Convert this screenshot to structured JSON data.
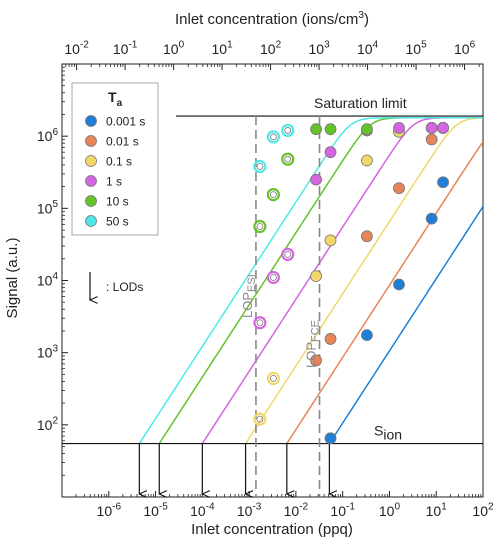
{
  "chart_data": {
    "type": "scatter",
    "title": "",
    "xlabel": "Inlet concentration (ppq)",
    "ylabel": "Signal (a.u.)",
    "top_axis_label": "Inlet concentration (ions/cm3)",
    "top_axis_label_main": "Inlet concentration (ions/cm",
    "top_axis_label_sup": "3",
    "top_axis_label_end": ")",
    "xscale": "log",
    "yscale": "log",
    "xlim": [
      1e-07,
      100
    ],
    "ylim": [
      10,
      10000000.0
    ],
    "top_xlim": [
      0.005,
      2400000
    ],
    "x_ticks": [
      {
        "value": 1e-06,
        "base": "10",
        "exp": "-6"
      },
      {
        "value": 1e-05,
        "base": "10",
        "exp": "-5"
      },
      {
        "value": 0.0001,
        "base": "10",
        "exp": "-4"
      },
      {
        "value": 0.001,
        "base": "10",
        "exp": "-3"
      },
      {
        "value": 0.01,
        "base": "10",
        "exp": "-2"
      },
      {
        "value": 0.1,
        "base": "10",
        "exp": "-1"
      },
      {
        "value": 1,
        "base": "10",
        "exp": "0"
      },
      {
        "value": 10,
        "base": "10",
        "exp": "1"
      },
      {
        "value": 100,
        "base": "10",
        "exp": "2"
      }
    ],
    "top_ticks": [
      {
        "value": 0.01,
        "base": "10",
        "exp": "-2"
      },
      {
        "value": 0.1,
        "base": "10",
        "exp": "-1"
      },
      {
        "value": 1,
        "base": "10",
        "exp": "0"
      },
      {
        "value": 10,
        "base": "10",
        "exp": "1"
      },
      {
        "value": 100,
        "base": "10",
        "exp": "2"
      },
      {
        "value": 1000,
        "base": "10",
        "exp": "3"
      },
      {
        "value": 10000,
        "base": "10",
        "exp": "4"
      },
      {
        "value": 100000,
        "base": "10",
        "exp": "5"
      },
      {
        "value": 1000000,
        "base": "10",
        "exp": "6"
      }
    ],
    "y_ticks": [
      {
        "value": 100,
        "base": "10",
        "exp": "2"
      },
      {
        "value": 1000,
        "base": "10",
        "exp": "3"
      },
      {
        "value": 10000,
        "base": "10",
        "exp": "4"
      },
      {
        "value": 100000,
        "base": "10",
        "exp": "5"
      },
      {
        "value": 1000000,
        "base": "10",
        "exp": "6"
      }
    ],
    "legend": {
      "title_main": "T",
      "title_sub": "a",
      "placement": "top-left"
    },
    "series": [
      {
        "name": "0.001 s",
        "color": "#1f7fd6",
        "curve": {
          "lod": 0.052,
          "s0": 55,
          "sat": 1800000.0
        },
        "points": [
          {
            "x": 0.055,
            "y": 65,
            "style": "filled"
          },
          {
            "x": 0.33,
            "y": 1750,
            "style": "filled"
          },
          {
            "x": 1.6,
            "y": 8800,
            "style": "filled"
          },
          {
            "x": 8.0,
            "y": 72000,
            "style": "filled"
          },
          {
            "x": 14,
            "y": 230000,
            "style": "filled"
          }
        ]
      },
      {
        "name": "0.01 s",
        "color": "#e8845a",
        "curve": {
          "lod": 0.0064,
          "s0": 55,
          "sat": 1800000.0
        },
        "points": [
          {
            "x": 0.027,
            "y": 780,
            "style": "filled"
          },
          {
            "x": 0.055,
            "y": 1550,
            "style": "filled"
          },
          {
            "x": 0.33,
            "y": 41000,
            "style": "filled"
          },
          {
            "x": 1.6,
            "y": 190000,
            "style": "filled"
          },
          {
            "x": 8.0,
            "y": 900000,
            "style": "filled"
          },
          {
            "x": 14,
            "y": 1300000,
            "style": "filled"
          }
        ]
      },
      {
        "name": "0.1 s",
        "color": "#f2d76a",
        "curve": {
          "lod": 0.00084,
          "s0": 55,
          "sat": 1800000.0
        },
        "points": [
          {
            "x": 0.0017,
            "y": 120,
            "style": "open"
          },
          {
            "x": 0.0033,
            "y": 440,
            "style": "open"
          },
          {
            "x": 0.027,
            "y": 11500,
            "style": "filled"
          },
          {
            "x": 0.055,
            "y": 36000,
            "style": "filled"
          },
          {
            "x": 0.33,
            "y": 460000,
            "style": "filled"
          },
          {
            "x": 1.6,
            "y": 1150000,
            "style": "filled"
          },
          {
            "x": 8.0,
            "y": 1300000,
            "style": "filled"
          },
          {
            "x": 14,
            "y": 1300000,
            "style": "filled"
          }
        ]
      },
      {
        "name": "1 s",
        "color": "#d465e0",
        "curve": {
          "lod": 0.0001,
          "s0": 55,
          "sat": 1800000.0
        },
        "points": [
          {
            "x": 0.0017,
            "y": 2600,
            "style": "open"
          },
          {
            "x": 0.0033,
            "y": 11000,
            "style": "open"
          },
          {
            "x": 0.0067,
            "y": 23000,
            "style": "open"
          },
          {
            "x": 0.027,
            "y": 250000,
            "style": "filled"
          },
          {
            "x": 0.055,
            "y": 600000,
            "style": "filled"
          },
          {
            "x": 0.33,
            "y": 1200000,
            "style": "filled"
          },
          {
            "x": 1.6,
            "y": 1300000,
            "style": "filled"
          },
          {
            "x": 8.0,
            "y": 1300000,
            "style": "filled"
          },
          {
            "x": 14,
            "y": 1300000,
            "style": "filled"
          }
        ]
      },
      {
        "name": "10 s",
        "color": "#66c22a",
        "curve": {
          "lod": 1.2e-05,
          "s0": 55,
          "sat": 1800000.0
        },
        "points": [
          {
            "x": 0.0017,
            "y": 56000,
            "style": "open"
          },
          {
            "x": 0.0033,
            "y": 155000,
            "style": "open"
          },
          {
            "x": 0.0067,
            "y": 480000,
            "style": "open"
          },
          {
            "x": 0.027,
            "y": 1250000,
            "style": "filled"
          },
          {
            "x": 0.055,
            "y": 1250000,
            "style": "filled"
          },
          {
            "x": 0.33,
            "y": 1250000,
            "style": "filled"
          }
        ]
      },
      {
        "name": "50 s",
        "color": "#4fe8e8",
        "curve": {
          "lod": 4.5e-06,
          "s0": 55,
          "sat": 1800000.0
        },
        "points": [
          {
            "x": 0.0017,
            "y": 380000,
            "style": "open"
          },
          {
            "x": 0.0033,
            "y": 980000,
            "style": "open"
          },
          {
            "x": 0.0067,
            "y": 1200000,
            "style": "open"
          }
        ]
      }
    ],
    "annotations": {
      "saturation": {
        "label": "Saturation limit",
        "y": 1900000.0
      },
      "sion": {
        "label_main": "S",
        "label_sub": "ion",
        "y": 55
      },
      "lods_label": ": LODs",
      "lod_arrows_x": [
        4.5e-06,
        1.2e-05,
        0.0001,
        0.00084,
        0.0064,
        0.052
      ],
      "lop_esi": {
        "x": 0.0014,
        "label_main": "LOP",
        "label_sub": "ESI"
      },
      "lop_fce": {
        "x": 0.032,
        "label_main": "LOP",
        "label_sub": "FCE"
      }
    }
  }
}
